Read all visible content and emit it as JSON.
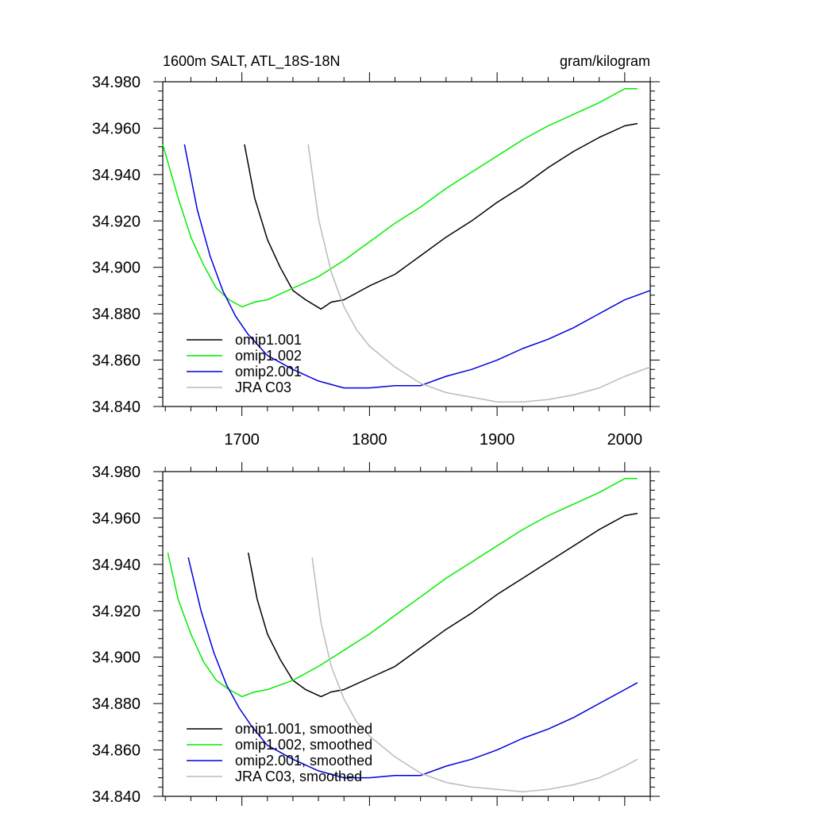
{
  "header": {
    "title": "1600m SALT, ATL_18S-18N",
    "units": "gram/kilogram"
  },
  "series_colors": {
    "omip1.001": "#000000",
    "omip1.002": "#00ee00",
    "omip2.001": "#0000dd",
    "JRA C03": "#bbbbbb"
  },
  "chart_data": [
    {
      "type": "line",
      "title": "1600m SALT, ATL_18S-18N",
      "units": "gram/kilogram",
      "xlim": [
        1638,
        2020
      ],
      "ylim": [
        34.84,
        34.98
      ],
      "x_ticks": [
        1700,
        1800,
        1900,
        2000
      ],
      "x_tick_labels": [
        "1700",
        "1800",
        "1900",
        "2000"
      ],
      "y_ticks": [
        34.84,
        34.86,
        34.88,
        34.9,
        34.92,
        34.94,
        34.96,
        34.98
      ],
      "y_tick_labels": [
        "34.840",
        "34.860",
        "34.880",
        "34.900",
        "34.920",
        "34.940",
        "34.960",
        "34.980"
      ],
      "legend_position": "bottom-left",
      "series": [
        {
          "name": "omip1.001",
          "color": "#000000",
          "x": [
            1702,
            1710,
            1720,
            1730,
            1740,
            1750,
            1762,
            1770,
            1780,
            1800,
            1820,
            1840,
            1860,
            1880,
            1900,
            1920,
            1940,
            1960,
            1980,
            2000,
            2010
          ],
          "y": [
            34.953,
            34.93,
            34.912,
            34.9,
            34.89,
            34.886,
            34.882,
            34.885,
            34.886,
            34.892,
            34.897,
            34.905,
            34.913,
            34.92,
            34.928,
            34.935,
            34.943,
            34.95,
            34.956,
            34.961,
            34.962
          ]
        },
        {
          "name": "omip1.002",
          "color": "#00ee00",
          "x": [
            1638,
            1650,
            1660,
            1670,
            1680,
            1690,
            1700,
            1710,
            1720,
            1740,
            1760,
            1780,
            1800,
            1820,
            1840,
            1860,
            1880,
            1900,
            1920,
            1940,
            1960,
            1980,
            2000,
            2010
          ],
          "y": [
            34.953,
            34.93,
            34.913,
            34.901,
            34.891,
            34.886,
            34.883,
            34.885,
            34.886,
            34.891,
            34.896,
            34.903,
            34.911,
            34.919,
            34.926,
            34.934,
            34.941,
            34.948,
            34.955,
            34.961,
            34.966,
            34.971,
            34.977,
            34.977
          ]
        },
        {
          "name": "omip2.001",
          "color": "#0000dd",
          "x": [
            1655,
            1665,
            1675,
            1685,
            1695,
            1705,
            1720,
            1740,
            1760,
            1780,
            1800,
            1820,
            1840,
            1860,
            1880,
            1900,
            1920,
            1940,
            1960,
            1980,
            2000,
            2020
          ],
          "y": [
            34.953,
            34.925,
            34.905,
            34.89,
            34.879,
            34.871,
            34.862,
            34.856,
            34.851,
            34.848,
            34.848,
            34.849,
            34.849,
            34.853,
            34.856,
            34.86,
            34.865,
            34.869,
            34.874,
            34.88,
            34.886,
            34.89
          ]
        },
        {
          "name": "JRA C03",
          "color": "#bbbbbb",
          "x": [
            1752,
            1760,
            1770,
            1780,
            1790,
            1800,
            1820,
            1840,
            1860,
            1880,
            1900,
            1920,
            1940,
            1960,
            1980,
            2000,
            2020
          ],
          "y": [
            34.953,
            34.921,
            34.898,
            34.883,
            34.873,
            34.866,
            34.857,
            34.85,
            34.846,
            34.844,
            34.842,
            34.842,
            34.843,
            34.845,
            34.848,
            34.853,
            34.857
          ]
        }
      ]
    },
    {
      "type": "line",
      "xlim": [
        1638,
        2020
      ],
      "ylim": [
        34.84,
        34.98
      ],
      "y_ticks": [
        34.84,
        34.86,
        34.88,
        34.9,
        34.92,
        34.94,
        34.96,
        34.98
      ],
      "y_tick_labels": [
        "34.840",
        "34.860",
        "34.880",
        "34.900",
        "34.920",
        "34.940",
        "34.960",
        "34.980"
      ],
      "legend_position": "bottom-left",
      "series": [
        {
          "name": "omip1.001, smoothed",
          "color": "#000000",
          "x": [
            1705,
            1712,
            1720,
            1730,
            1740,
            1750,
            1762,
            1770,
            1780,
            1800,
            1820,
            1840,
            1860,
            1880,
            1900,
            1920,
            1940,
            1960,
            1980,
            2000,
            2010
          ],
          "y": [
            34.945,
            34.925,
            34.91,
            34.899,
            34.89,
            34.886,
            34.883,
            34.885,
            34.886,
            34.891,
            34.896,
            34.904,
            34.912,
            34.919,
            34.927,
            34.934,
            34.941,
            34.948,
            34.955,
            34.961,
            34.962
          ]
        },
        {
          "name": "omip1.002, smoothed",
          "color": "#00ee00",
          "x": [
            1642,
            1650,
            1660,
            1670,
            1680,
            1690,
            1700,
            1710,
            1720,
            1740,
            1760,
            1780,
            1800,
            1820,
            1840,
            1860,
            1880,
            1900,
            1920,
            1940,
            1960,
            1980,
            2000,
            2010
          ],
          "y": [
            34.945,
            34.925,
            34.91,
            34.898,
            34.89,
            34.886,
            34.883,
            34.885,
            34.886,
            34.89,
            34.896,
            34.903,
            34.91,
            34.918,
            34.926,
            34.934,
            34.941,
            34.948,
            34.955,
            34.961,
            34.966,
            34.971,
            34.977,
            34.977
          ]
        },
        {
          "name": "omip2.001, smoothed",
          "color": "#0000dd",
          "x": [
            1658,
            1668,
            1678,
            1688,
            1698,
            1708,
            1720,
            1740,
            1760,
            1780,
            1800,
            1820,
            1840,
            1860,
            1880,
            1900,
            1920,
            1940,
            1960,
            1980,
            2000,
            2010
          ],
          "y": [
            34.943,
            34.92,
            34.902,
            34.888,
            34.878,
            34.87,
            34.862,
            34.856,
            34.851,
            34.848,
            34.848,
            34.849,
            34.849,
            34.853,
            34.856,
            34.86,
            34.865,
            34.869,
            34.874,
            34.88,
            34.886,
            34.889
          ]
        },
        {
          "name": "JRA C03, smoothed",
          "color": "#bbbbbb",
          "x": [
            1755,
            1762,
            1770,
            1780,
            1790,
            1800,
            1820,
            1840,
            1860,
            1880,
            1900,
            1920,
            1940,
            1960,
            1980,
            2000,
            2010
          ],
          "y": [
            34.943,
            34.915,
            34.896,
            34.882,
            34.872,
            34.866,
            34.857,
            34.85,
            34.846,
            34.844,
            34.843,
            34.842,
            34.843,
            34.845,
            34.848,
            34.853,
            34.856
          ]
        }
      ]
    }
  ]
}
